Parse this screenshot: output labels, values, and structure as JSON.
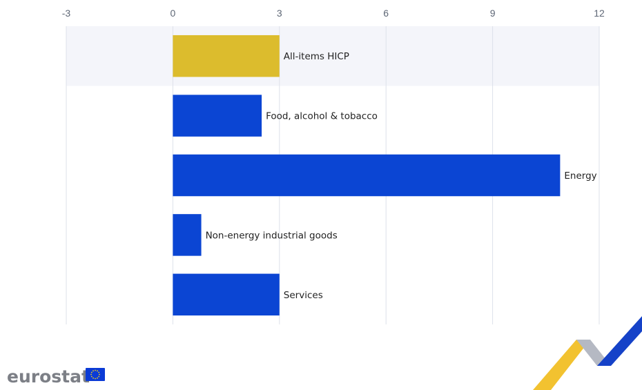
{
  "logo": {
    "wordmark": "eurostat",
    "flag_color": "#0b3bd6",
    "star_color": "#f7d117"
  },
  "colors": {
    "highlight_bar": "#dcbc2d",
    "bar": "#0b45d3",
    "highlight_band": "#f4f5fa",
    "grid": "#dde1ea",
    "ribbon_yellow": "#f2c230",
    "ribbon_blue": "#1542c8",
    "ribbon_grey": "#b5b9c3"
  },
  "chart_data": {
    "type": "bar",
    "orientation": "horizontal",
    "categories": [
      "All-items HICP",
      "Food, alcohol & tobacco",
      "Energy",
      "Non-energy industrial goods",
      "Services"
    ],
    "values": [
      3.0,
      2.5,
      10.9,
      0.8,
      3.0
    ],
    "highlighted_category": "All-items HICP",
    "xlim": [
      -3,
      12
    ],
    "xticks": [
      -3,
      0,
      3,
      6,
      9,
      12
    ],
    "axis_position": "top",
    "grid": true,
    "title": "",
    "xlabel": "",
    "ylabel": ""
  }
}
